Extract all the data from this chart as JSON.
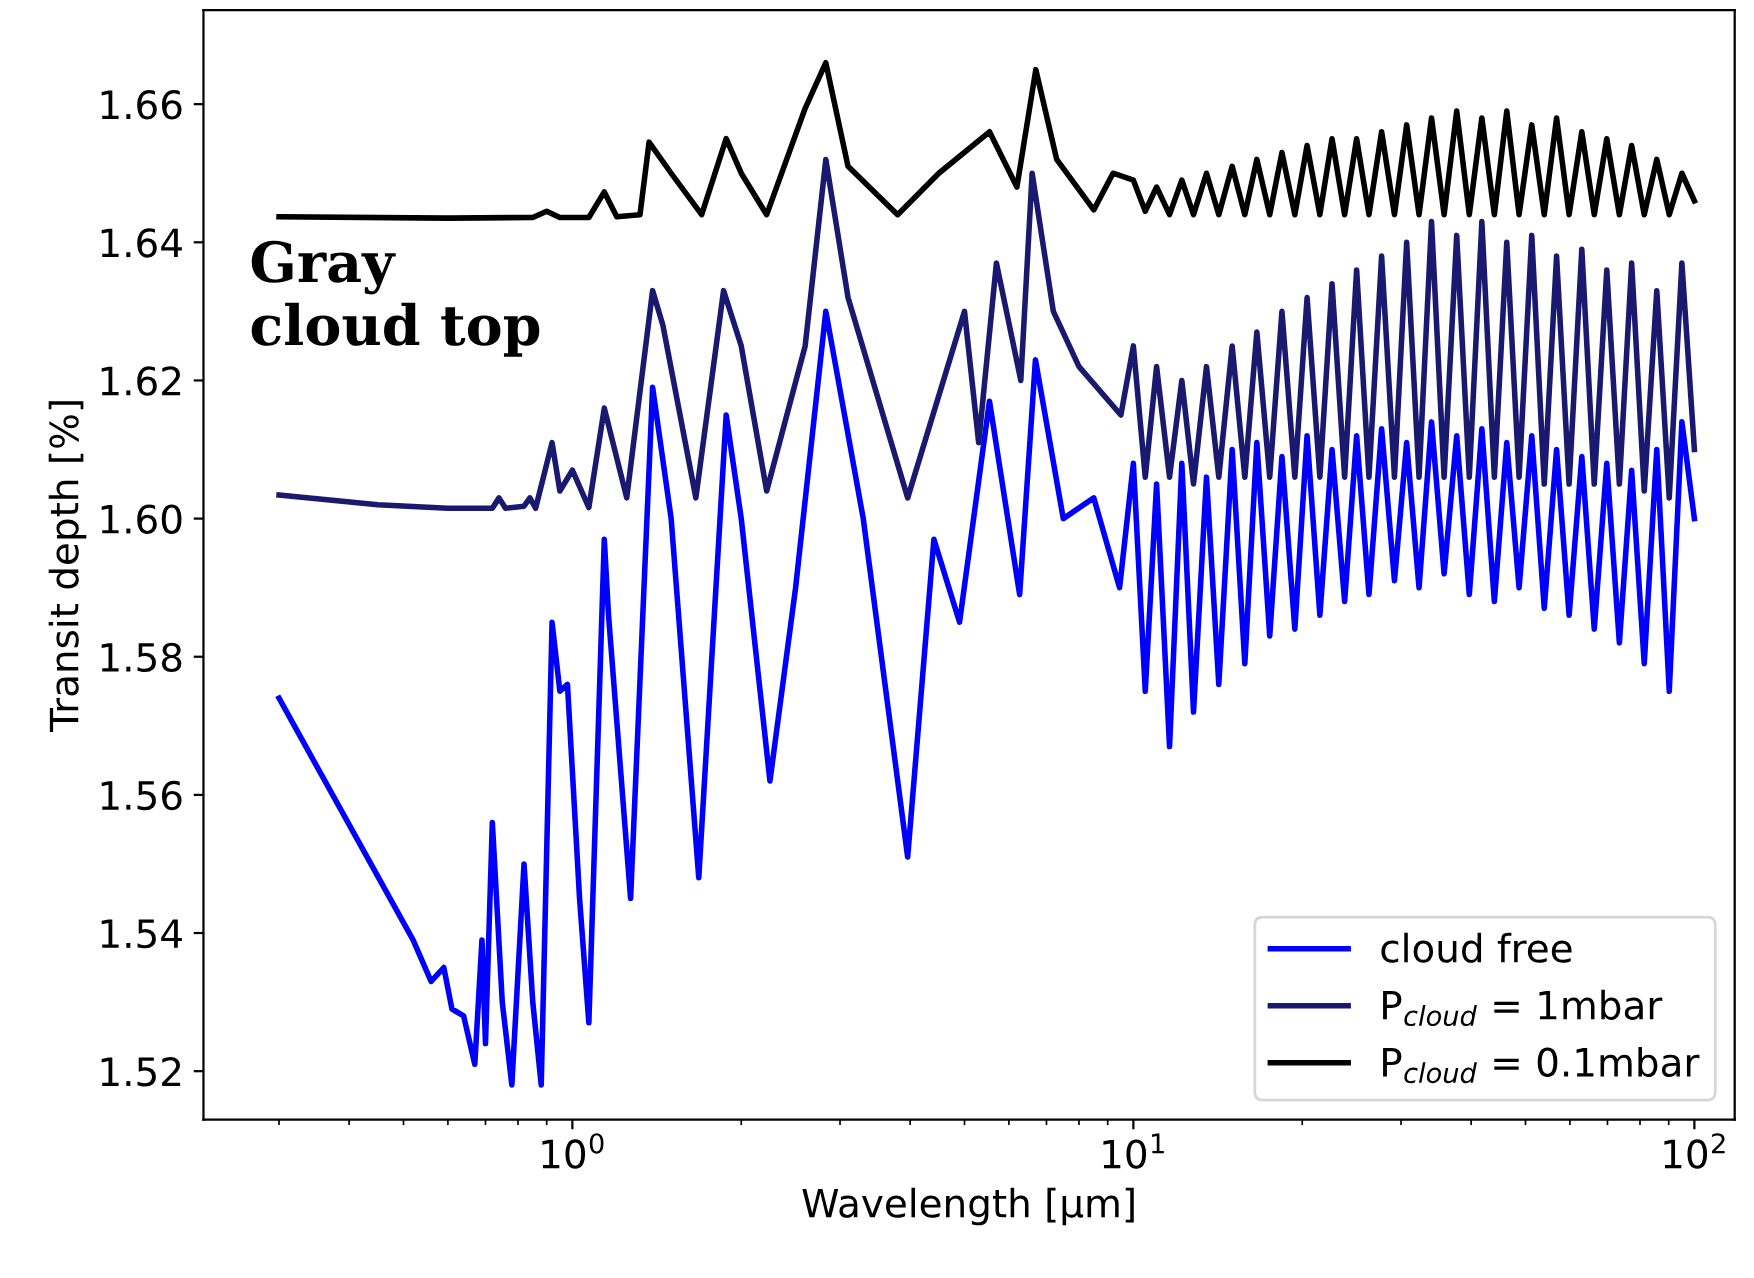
{
  "chart_data": {
    "type": "line",
    "xlabel": "Wavelength [µm]",
    "ylabel": "Transit depth [%]",
    "annotations": [
      "Gray\ncloud top"
    ],
    "log": "x",
    "grid": false,
    "legend": "bottom right",
    "line_style": "solid",
    "marker": "none",
    "xlim": [
      0.22,
      118
    ],
    "ylim": [
      1.513,
      1.6736
    ],
    "xticks": [
      {
        "value": 1,
        "label": "10$^{0}$"
      },
      {
        "value": 10,
        "label": "10$^{1}$"
      },
      {
        "value": 100,
        "label": "10$^{2}$"
      }
    ],
    "yticks": [
      {
        "value": 1.52,
        "label": "1.52"
      },
      {
        "value": 1.54,
        "label": "1.54"
      },
      {
        "value": 1.56,
        "label": "1.56"
      },
      {
        "value": 1.58,
        "label": "1.58"
      },
      {
        "value": 1.6,
        "label": "1.60"
      },
      {
        "value": 1.62,
        "label": "1.62"
      },
      {
        "value": 1.64,
        "label": "1.64"
      },
      {
        "value": 1.66,
        "label": "1.66"
      }
    ],
    "series": [
      {
        "name": "cloud free",
        "color": "#0000ff",
        "x": [
          0.3,
          0.52,
          0.56,
          0.59,
          0.61,
          0.64,
          0.67,
          0.69,
          0.7,
          0.72,
          0.75,
          0.78,
          0.82,
          0.85,
          0.88,
          0.92,
          0.95,
          0.98,
          1.03,
          1.07,
          1.14,
          1.16,
          1.27,
          1.39,
          1.5,
          1.68,
          1.88,
          2.0,
          2.25,
          2.5,
          2.83,
          3.3,
          3.96,
          4.41,
          4.9,
          5.54,
          6.27,
          6.69,
          7.5,
          8.5,
          9.45,
          10,
          10.5,
          11,
          11.6,
          12.2,
          12.8,
          13.5,
          14.2,
          15,
          15.8,
          16.6,
          17.5,
          18.4,
          19.4,
          20.4,
          21.5,
          22.6,
          23.8,
          25,
          26.3,
          27.7,
          29.2,
          30.7,
          32.3,
          34,
          35.8,
          37.7,
          39.7,
          41.8,
          44,
          46.3,
          48.7,
          51.3,
          54,
          56.8,
          59.8,
          63,
          66.3,
          69.8,
          73.5,
          77.3,
          81.4,
          85.7,
          90.2,
          95,
          100
        ],
        "values": [
          1.574,
          1.539,
          1.533,
          1.535,
          1.529,
          1.528,
          1.521,
          1.539,
          1.524,
          1.556,
          1.53,
          1.518,
          1.55,
          1.53,
          1.518,
          1.585,
          1.575,
          1.576,
          1.545,
          1.527,
          1.597,
          1.586,
          1.545,
          1.619,
          1.6,
          1.548,
          1.615,
          1.6,
          1.562,
          1.59,
          1.63,
          1.6,
          1.551,
          1.597,
          1.585,
          1.617,
          1.589,
          1.623,
          1.6,
          1.603,
          1.59,
          1.608,
          1.575,
          1.605,
          1.567,
          1.608,
          1.572,
          1.606,
          1.576,
          1.61,
          1.579,
          1.611,
          1.583,
          1.609,
          1.584,
          1.612,
          1.586,
          1.61,
          1.588,
          1.612,
          1.589,
          1.613,
          1.591,
          1.611,
          1.59,
          1.614,
          1.592,
          1.612,
          1.589,
          1.613,
          1.588,
          1.611,
          1.59,
          1.612,
          1.587,
          1.61,
          1.586,
          1.609,
          1.584,
          1.608,
          1.582,
          1.607,
          1.579,
          1.61,
          1.575,
          1.614,
          1.6
        ]
      },
      {
        "name": "P$_{cloud}$ = 1mbar",
        "color": "#191970",
        "x": [
          0.3,
          0.45,
          0.6,
          0.72,
          0.74,
          0.76,
          0.82,
          0.84,
          0.86,
          0.92,
          0.95,
          1.0,
          1.07,
          1.14,
          1.25,
          1.39,
          1.45,
          1.66,
          1.86,
          2.0,
          2.22,
          2.6,
          2.83,
          3.1,
          3.96,
          5.0,
          5.3,
          5.7,
          6.3,
          6.6,
          7.2,
          8,
          9.5,
          10,
          10.5,
          11,
          11.6,
          12.2,
          12.8,
          13.5,
          14.2,
          15,
          15.8,
          16.6,
          17.5,
          18.4,
          19.4,
          20.4,
          21.5,
          22.6,
          23.8,
          25,
          26.3,
          27.7,
          29.2,
          30.7,
          32.3,
          34,
          35.8,
          37.7,
          39.7,
          41.8,
          44,
          46.3,
          48.7,
          51.3,
          54,
          56.8,
          59.8,
          63,
          66.3,
          69.8,
          73.5,
          77.3,
          81.4,
          85.7,
          90.2,
          95,
          100
        ],
        "values": [
          1.6034,
          1.602,
          1.6015,
          1.6015,
          1.603,
          1.6015,
          1.6018,
          1.603,
          1.6015,
          1.611,
          1.604,
          1.607,
          1.6016,
          1.616,
          1.603,
          1.633,
          1.628,
          1.603,
          1.633,
          1.625,
          1.604,
          1.625,
          1.652,
          1.632,
          1.603,
          1.63,
          1.611,
          1.637,
          1.62,
          1.65,
          1.63,
          1.622,
          1.615,
          1.625,
          1.606,
          1.622,
          1.606,
          1.62,
          1.605,
          1.622,
          1.606,
          1.625,
          1.606,
          1.627,
          1.606,
          1.63,
          1.606,
          1.632,
          1.606,
          1.634,
          1.606,
          1.636,
          1.606,
          1.638,
          1.606,
          1.64,
          1.606,
          1.643,
          1.606,
          1.641,
          1.606,
          1.643,
          1.606,
          1.64,
          1.606,
          1.641,
          1.605,
          1.638,
          1.605,
          1.639,
          1.605,
          1.636,
          1.605,
          1.637,
          1.604,
          1.633,
          1.603,
          1.637,
          1.61
        ]
      },
      {
        "name": "P$_{cloud}$ = 0.1mbar",
        "color": "#000000",
        "x": [
          0.3,
          0.6,
          0.85,
          0.9,
          0.95,
          1.07,
          1.14,
          1.2,
          1.32,
          1.37,
          1.5,
          1.7,
          1.88,
          2.0,
          2.22,
          2.6,
          2.83,
          3.1,
          3.8,
          4.5,
          5.54,
          6.2,
          6.7,
          7.3,
          8.5,
          9.2,
          10,
          10.5,
          11,
          11.6,
          12.2,
          12.8,
          13.5,
          14.2,
          15,
          15.8,
          16.6,
          17.5,
          18.4,
          19.4,
          20.4,
          21.5,
          22.6,
          23.8,
          25,
          26.3,
          27.7,
          29.2,
          30.7,
          32.3,
          34,
          35.8,
          37.7,
          39.7,
          41.8,
          44,
          46.3,
          48.7,
          51.3,
          54,
          56.8,
          59.8,
          63,
          66.3,
          69.8,
          73.5,
          77.3,
          81.4,
          85.7,
          90.2,
          95,
          100
        ],
        "values": [
          1.6437,
          1.6435,
          1.6436,
          1.6445,
          1.6436,
          1.6436,
          1.6473,
          1.6437,
          1.644,
          1.6545,
          1.65,
          1.644,
          1.655,
          1.65,
          1.644,
          1.6594,
          1.666,
          1.651,
          1.644,
          1.65,
          1.656,
          1.648,
          1.665,
          1.652,
          1.6447,
          1.65,
          1.649,
          1.6445,
          1.648,
          1.644,
          1.649,
          1.644,
          1.65,
          1.644,
          1.651,
          1.644,
          1.652,
          1.644,
          1.653,
          1.644,
          1.654,
          1.644,
          1.655,
          1.644,
          1.655,
          1.644,
          1.656,
          1.644,
          1.657,
          1.644,
          1.658,
          1.644,
          1.659,
          1.644,
          1.658,
          1.644,
          1.659,
          1.644,
          1.657,
          1.644,
          1.658,
          1.644,
          1.656,
          1.644,
          1.655,
          1.644,
          1.654,
          1.644,
          1.652,
          1.644,
          1.65,
          1.646
        ]
      }
    ]
  }
}
